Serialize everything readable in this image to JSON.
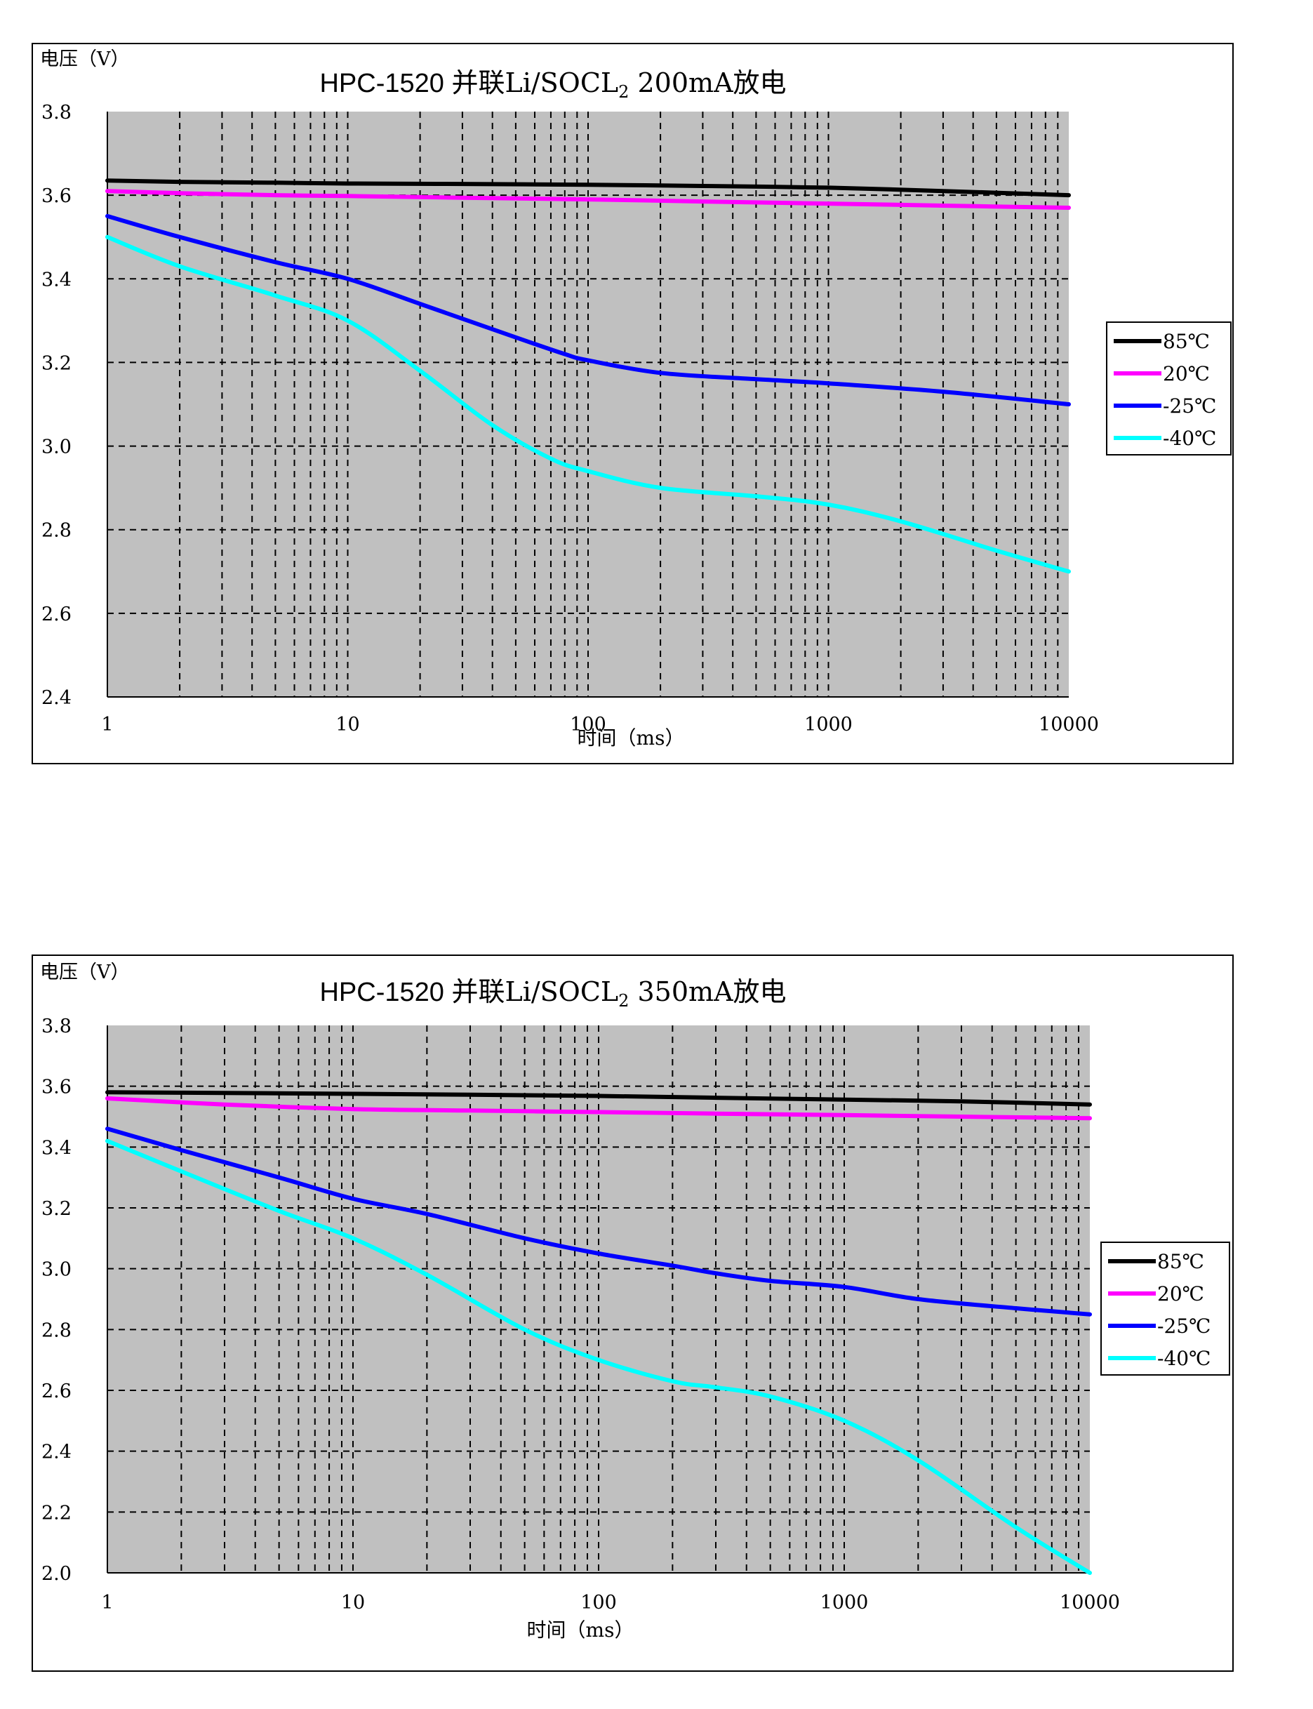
{
  "chart_data": [
    {
      "type": "line",
      "title_main": "HPC-1520 ",
      "title_rest": "并联Li/SOCL",
      "title_sub": "2",
      "title_tail": " 200mA放电",
      "xlabel": "时间（ms）",
      "ylabel": "电压（V）",
      "x_scale": "log",
      "xlim": [
        1,
        10000
      ],
      "ylim": [
        2.4,
        3.8
      ],
      "x_ticks": [
        1,
        10,
        100,
        1000,
        10000
      ],
      "x_tick_labels": [
        "1",
        "10",
        "100",
        "1000",
        "10000"
      ],
      "y_ticks": [
        2.4,
        2.6,
        2.8,
        3.0,
        3.2,
        3.4,
        3.6,
        3.8
      ],
      "y_tick_labels": [
        "2.4",
        "2.6",
        "2.8",
        "3.0",
        "3.2",
        "3.4",
        "3.6",
        "3.8"
      ],
      "grid": true,
      "legend_position": "right",
      "plot_bg": "#c0c0c0",
      "series": [
        {
          "name": "85℃",
          "color": "#000000",
          "x": [
            1,
            2,
            5,
            10,
            30,
            100,
            300,
            1000,
            3000,
            10000
          ],
          "y": [
            3.635,
            3.632,
            3.63,
            3.628,
            3.627,
            3.625,
            3.622,
            3.618,
            3.61,
            3.6
          ]
        },
        {
          "name": "20℃",
          "color": "#ff00ff",
          "x": [
            1,
            2,
            5,
            10,
            30,
            100,
            300,
            1000,
            3000,
            10000
          ],
          "y": [
            3.61,
            3.605,
            3.6,
            3.598,
            3.594,
            3.59,
            3.585,
            3.58,
            3.575,
            3.57
          ]
        },
        {
          "name": "-25℃",
          "color": "#0000ff",
          "x": [
            1,
            2,
            5,
            10,
            20,
            50,
            80,
            100,
            200,
            500,
            1000,
            3000,
            10000
          ],
          "y": [
            3.55,
            3.5,
            3.44,
            3.4,
            3.34,
            3.26,
            3.22,
            3.205,
            3.175,
            3.16,
            3.15,
            3.13,
            3.1
          ]
        },
        {
          "name": "-40℃",
          "color": "#00ffff",
          "x": [
            1,
            2,
            5,
            10,
            20,
            40,
            70,
            100,
            200,
            500,
            1000,
            2000,
            5000,
            10000
          ],
          "y": [
            3.5,
            3.43,
            3.36,
            3.3,
            3.18,
            3.05,
            2.97,
            2.94,
            2.9,
            2.88,
            2.86,
            2.82,
            2.75,
            2.7
          ]
        }
      ]
    },
    {
      "type": "line",
      "title_main": "HPC-1520 ",
      "title_rest": "并联Li/SOCL",
      "title_sub": "2",
      "title_tail": " 350mA放电",
      "xlabel": "时间（ms）",
      "ylabel": "电压（V）",
      "x_scale": "log",
      "xlim": [
        1,
        10000
      ],
      "ylim": [
        2.0,
        3.8
      ],
      "x_ticks": [
        1,
        10,
        100,
        1000,
        10000
      ],
      "x_tick_labels": [
        "1",
        "10",
        "100",
        "1000",
        "10000"
      ],
      "y_ticks": [
        2.0,
        2.2,
        2.4,
        2.6,
        2.8,
        3.0,
        3.2,
        3.4,
        3.6,
        3.8
      ],
      "y_tick_labels": [
        "2.0",
        "2.2",
        "2.4",
        "2.6",
        "2.8",
        "3.0",
        "3.2",
        "3.4",
        "3.6",
        "3.8"
      ],
      "grid": true,
      "legend_position": "right",
      "plot_bg": "#c0c0c0",
      "series": [
        {
          "name": "85℃",
          "color": "#000000",
          "x": [
            1,
            3,
            10,
            30,
            100,
            300,
            1000,
            3000,
            10000
          ],
          "y": [
            3.58,
            3.578,
            3.575,
            3.572,
            3.568,
            3.562,
            3.556,
            3.55,
            3.54
          ]
        },
        {
          "name": "20℃",
          "color": "#ff00ff",
          "x": [
            1,
            3,
            10,
            30,
            100,
            300,
            1000,
            3000,
            10000
          ],
          "y": [
            3.56,
            3.54,
            3.525,
            3.52,
            3.515,
            3.51,
            3.505,
            3.5,
            3.495
          ]
        },
        {
          "name": "-25℃",
          "color": "#0000ff",
          "x": [
            1,
            2,
            5,
            10,
            20,
            50,
            100,
            200,
            300,
            500,
            1000,
            2000,
            5000,
            10000
          ],
          "y": [
            3.46,
            3.39,
            3.3,
            3.23,
            3.18,
            3.1,
            3.05,
            3.01,
            2.985,
            2.96,
            2.94,
            2.9,
            2.87,
            2.85
          ]
        },
        {
          "name": "-40℃",
          "color": "#00ffff",
          "x": [
            1,
            2,
            5,
            10,
            20,
            50,
            100,
            200,
            300,
            500,
            1000,
            2000,
            5000,
            10000
          ],
          "y": [
            3.42,
            3.32,
            3.19,
            3.1,
            2.98,
            2.8,
            2.7,
            2.63,
            2.61,
            2.58,
            2.5,
            2.37,
            2.15,
            2.0
          ]
        }
      ]
    }
  ]
}
